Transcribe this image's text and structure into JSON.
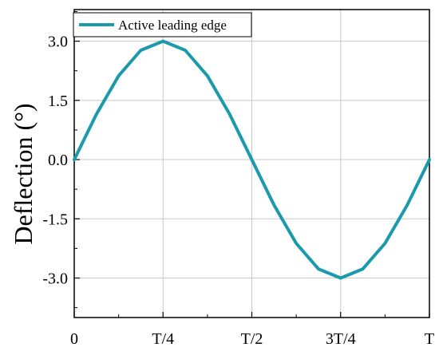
{
  "chart_data": {
    "type": "line",
    "title": "",
    "xlabel": "",
    "ylabel": "Deflection (°)",
    "x_tick_labels": [
      "0",
      "T/4",
      "T/2",
      "3T/4",
      "T"
    ],
    "y_tick_labels": [
      "3.0",
      "1.5",
      "0.0",
      "-1.5",
      "-3.0"
    ],
    "y_tick_values": [
      3.0,
      1.5,
      0.0,
      -1.5,
      -3.0
    ],
    "xlim": [
      0,
      1
    ],
    "ylim": [
      -4,
      3.8
    ],
    "grid": true,
    "legend_position": "top-left",
    "series": [
      {
        "name": "Active leading edge",
        "color": "#1a9aaa",
        "x": [
          0,
          0.0625,
          0.125,
          0.1875,
          0.25,
          0.3125,
          0.375,
          0.4375,
          0.5,
          0.5625,
          0.625,
          0.6875,
          0.75,
          0.8125,
          0.875,
          0.9375,
          1
        ],
        "y": [
          0,
          1.15,
          2.12,
          2.77,
          3.0,
          2.77,
          2.12,
          1.15,
          0,
          -1.15,
          -2.12,
          -2.77,
          -3.0,
          -2.77,
          -2.12,
          -1.15,
          0
        ]
      }
    ]
  }
}
